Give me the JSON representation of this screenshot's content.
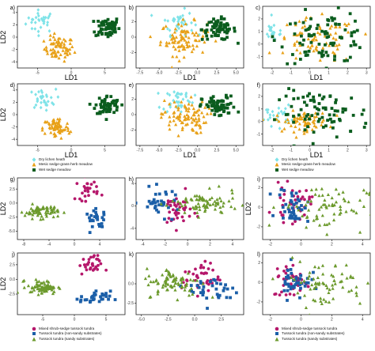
{
  "colors": {
    "dry_lichen_heath": "#7fe3e8",
    "mesic_sedge_grass_herb_meadow": "#e8a118",
    "wet_sedge_meadow": "#0b5d1e",
    "mixed_shrub_sedge_tussock_tundra": "#b5176b",
    "tussock_tundra_non_sandy": "#1b5fa8",
    "tussock_tundra_sandy": "#6c9a2d"
  },
  "legends": [
    {
      "items": [
        {
          "label": "Dry lichen heath",
          "marker": "diamond",
          "color_key": "dry_lichen_heath"
        },
        {
          "label": "Mesic sedge-grass-herb meadow",
          "marker": "triangle",
          "color_key": "mesic_sedge_grass_herb_meadow"
        },
        {
          "label": "Wet sedge meadow",
          "marker": "square",
          "color_key": "wet_sedge_meadow"
        }
      ]
    },
    {
      "items": [
        {
          "label": "Dry lichen heath",
          "marker": "diamond",
          "color_key": "dry_lichen_heath"
        },
        {
          "label": "Mesic sedge-grass-herb meadow",
          "marker": "triangle",
          "color_key": "mesic_sedge_grass_herb_meadow"
        },
        {
          "label": "Wet sedge meadow",
          "marker": "square",
          "color_key": "wet_sedge_meadow"
        }
      ]
    },
    {
      "items": [
        {
          "label": "Mixed shrub-sedge tussock tundra",
          "marker": "circle",
          "color_key": "mixed_shrub_sedge_tussock_tundra"
        },
        {
          "label": "Tussock tundra (non-sandy substrates)",
          "marker": "square",
          "color_key": "tussock_tundra_non_sandy"
        },
        {
          "label": "Tussock tundra (sandy substrates)",
          "marker": "triangle",
          "color_key": "tussock_tundra_sandy"
        }
      ]
    },
    {
      "items": [
        {
          "label": "Mixed shrub-sedge tussock tundra",
          "marker": "circle",
          "color_key": "mixed_shrub_sedge_tussock_tundra"
        },
        {
          "label": "Tussock tundra (non-sandy substrates)",
          "marker": "square",
          "color_key": "tussock_tundra_non_sandy"
        },
        {
          "label": "Tussock tundra (sandy substrates)",
          "marker": "triangle",
          "color_key": "tussock_tundra_sandy"
        }
      ]
    }
  ],
  "caption": "",
  "chart_data": [
    {
      "panel": "a)",
      "type": "scatter",
      "xlabel": "LD1",
      "ylabel": "LD2",
      "xlim": [
        -8,
        8
      ],
      "ylim": [
        -5,
        5
      ],
      "xticks": [
        "-5",
        "0",
        "5"
      ],
      "xtick_values": [
        -5,
        0,
        5
      ],
      "yticks": [
        "-4",
        "-2",
        "0",
        "2",
        "4"
      ],
      "ytick_values": [
        -4,
        -2,
        0,
        2,
        4
      ],
      "series": [
        {
          "color_key": "dry_lichen_heath",
          "marker": "diamond",
          "cx": -4.5,
          "cy": 2.6,
          "sx": 1.1,
          "sy": 0.9,
          "n": 30
        },
        {
          "color_key": "mesic_sedge_grass_herb_meadow",
          "marker": "triangle",
          "cx": -1.8,
          "cy": -1.9,
          "sx": 1.1,
          "sy": 1.0,
          "n": 70
        },
        {
          "color_key": "wet_sedge_meadow",
          "marker": "square",
          "cx": 5.4,
          "cy": 1.6,
          "sx": 0.9,
          "sy": 0.9,
          "n": 60
        }
      ]
    },
    {
      "panel": "b)",
      "type": "scatter",
      "xlabel": "LD1",
      "ylabel": "",
      "xlim": [
        -8,
        6
      ],
      "ylim": [
        -4,
        4
      ],
      "xticks": [
        "-7.5",
        "-5.0",
        "-2.5",
        "0.0",
        "2.5",
        "5.0"
      ],
      "xtick_values": [
        -7.5,
        -5,
        -2.5,
        0,
        2.5,
        5
      ],
      "yticks": [
        "-2",
        "0",
        "2"
      ],
      "ytick_values": [
        -2,
        0,
        2
      ],
      "series": [
        {
          "color_key": "dry_lichen_heath",
          "marker": "diamond",
          "cx": -2.5,
          "cy": 1.9,
          "sx": 1.0,
          "sy": 0.8,
          "n": 40
        },
        {
          "color_key": "mesic_sedge_grass_herb_meadow",
          "marker": "triangle",
          "cx": -1.8,
          "cy": -0.2,
          "sx": 1.5,
          "sy": 1.1,
          "n": 90
        },
        {
          "color_key": "wet_sedge_meadow",
          "marker": "square",
          "cx": 2.8,
          "cy": 1.0,
          "sx": 1.1,
          "sy": 0.7,
          "n": 70
        }
      ]
    },
    {
      "panel": "c)",
      "type": "scatter",
      "xlabel": "LD1",
      "ylabel": "",
      "xlim": [
        -2.5,
        3.2
      ],
      "ylim": [
        -1.9,
        3.0
      ],
      "xticks": [
        "-2",
        "-1",
        "0",
        "1",
        "2",
        "3"
      ],
      "xtick_values": [
        -2,
        -1,
        0,
        1,
        2,
        3
      ],
      "yticks": [
        "-1",
        "0",
        "1",
        "2"
      ],
      "ytick_values": [
        -1,
        0,
        1,
        2
      ],
      "series": [
        {
          "color_key": "dry_lichen_heath",
          "marker": "diamond",
          "cx": -1.9,
          "cy": 1.0,
          "sx": 0.3,
          "sy": 0.4,
          "n": 18
        },
        {
          "color_key": "mesic_sedge_grass_herb_meadow",
          "marker": "triangle",
          "cx": 0.3,
          "cy": 0.2,
          "sx": 1.1,
          "sy": 0.9,
          "n": 80
        },
        {
          "color_key": "wet_sedge_meadow",
          "marker": "square",
          "cx": 0.8,
          "cy": 0.5,
          "sx": 1.2,
          "sy": 1.0,
          "n": 90
        }
      ]
    },
    {
      "panel": "d)",
      "type": "scatter",
      "xlabel": "LD1",
      "ylabel": "LD2",
      "xlim": [
        -8,
        8
      ],
      "ylim": [
        -5,
        5
      ],
      "xticks": [
        "-5",
        "0",
        "5"
      ],
      "xtick_values": [
        -5,
        0,
        5
      ],
      "yticks": [
        "-4",
        "-2",
        "0",
        "2",
        "4"
      ],
      "ytick_values": [
        -4,
        -2,
        0,
        2,
        4
      ],
      "series": [
        {
          "color_key": "dry_lichen_heath",
          "marker": "diamond",
          "cx": -4.3,
          "cy": 2.5,
          "sx": 1.0,
          "sy": 0.8,
          "n": 30
        },
        {
          "color_key": "mesic_sedge_grass_herb_meadow",
          "marker": "triangle",
          "cx": -2.2,
          "cy": -2.2,
          "sx": 1.0,
          "sy": 0.9,
          "n": 70
        },
        {
          "color_key": "wet_sedge_meadow",
          "marker": "square",
          "cx": 5.4,
          "cy": 1.5,
          "sx": 0.9,
          "sy": 0.8,
          "n": 60
        }
      ]
    },
    {
      "panel": "e)",
      "type": "scatter",
      "xlabel": "LD1",
      "ylabel": "",
      "xlim": [
        -8,
        6
      ],
      "ylim": [
        -4,
        4
      ],
      "xticks": [
        "-7.5",
        "-5.0",
        "-2.5",
        "0.0",
        "2.5",
        "5.0"
      ],
      "xtick_values": [
        -7.5,
        -5,
        -2.5,
        0,
        2.5,
        5
      ],
      "yticks": [
        "-2",
        "0",
        "2"
      ],
      "ytick_values": [
        -2,
        0,
        2
      ],
      "series": [
        {
          "color_key": "dry_lichen_heath",
          "marker": "diamond",
          "cx": -2.5,
          "cy": 1.9,
          "sx": 1.0,
          "sy": 0.8,
          "n": 40
        },
        {
          "color_key": "mesic_sedge_grass_herb_meadow",
          "marker": "triangle",
          "cx": -1.8,
          "cy": -0.3,
          "sx": 1.5,
          "sy": 1.1,
          "n": 90
        },
        {
          "color_key": "wet_sedge_meadow",
          "marker": "square",
          "cx": 2.8,
          "cy": 1.0,
          "sx": 1.1,
          "sy": 0.7,
          "n": 70
        }
      ]
    },
    {
      "panel": "f)",
      "type": "scatter",
      "xlabel": "LD1",
      "ylabel": "",
      "xlim": [
        -2.5,
        3.2
      ],
      "ylim": [
        -1.9,
        3.0
      ],
      "xticks": [
        "-2",
        "-1",
        "0",
        "1",
        "2",
        "3"
      ],
      "xtick_values": [
        -2,
        -1,
        0,
        1,
        2,
        3
      ],
      "yticks": [
        "-1",
        "0",
        "1",
        "2"
      ],
      "ytick_values": [
        -1,
        0,
        1,
        2
      ],
      "series": [
        {
          "color_key": "dry_lichen_heath",
          "marker": "diamond",
          "cx": -1.8,
          "cy": 0.5,
          "sx": 0.4,
          "sy": 0.4,
          "n": 25
        },
        {
          "color_key": "mesic_sedge_grass_herb_meadow",
          "marker": "triangle",
          "cx": -0.4,
          "cy": 0.0,
          "sx": 0.7,
          "sy": 0.4,
          "n": 70
        },
        {
          "color_key": "wet_sedge_meadow",
          "marker": "square",
          "cx": 0.8,
          "cy": 0.6,
          "sx": 1.2,
          "sy": 0.9,
          "n": 80
        }
      ]
    },
    {
      "panel": "g)",
      "type": "scatter",
      "xlabel": "",
      "ylabel": "LD2",
      "xlim": [
        -9,
        8
      ],
      "ylim": [
        -6.5,
        4.5
      ],
      "xticks": [
        "-8",
        "-4",
        "0",
        "4"
      ],
      "xtick_values": [
        -8,
        -4,
        0,
        4
      ],
      "yticks": [
        "-5.0",
        "-2.5",
        "0.0",
        "2.5"
      ],
      "ytick_values": [
        -5,
        -2.5,
        0,
        2.5
      ],
      "series": [
        {
          "color_key": "mixed_shrub_sedge_tussock_tundra",
          "marker": "circle",
          "cx": 2.0,
          "cy": 2.5,
          "sx": 0.9,
          "sy": 1.0,
          "n": 25
        },
        {
          "color_key": "tussock_tundra_non_sandy",
          "marker": "square",
          "cx": 3.6,
          "cy": -2.9,
          "sx": 0.9,
          "sy": 0.8,
          "n": 25
        },
        {
          "color_key": "tussock_tundra_sandy",
          "marker": "triangle",
          "cx": -5.2,
          "cy": -1.5,
          "sx": 1.3,
          "sy": 0.6,
          "n": 70
        }
      ]
    },
    {
      "panel": "h)",
      "type": "scatter",
      "xlabel": "",
      "ylabel": "",
      "xlim": [
        -4.6,
        5.0
      ],
      "ylim": [
        -6.0,
        5.0
      ],
      "xticks": [
        "-4",
        "-2",
        "0",
        "2",
        "4"
      ],
      "xtick_values": [
        -4,
        -2,
        0,
        2,
        4
      ],
      "yticks": [
        "-4",
        "0",
        "4"
      ],
      "ytick_values": [
        -4,
        0,
        4
      ],
      "series": [
        {
          "color_key": "mixed_shrub_sedge_tussock_tundra",
          "marker": "circle",
          "cx": -1.0,
          "cy": -0.8,
          "sx": 0.7,
          "sy": 1.5,
          "n": 40
        },
        {
          "color_key": "tussock_tundra_non_sandy",
          "marker": "square",
          "cx": -2.4,
          "cy": 0.6,
          "sx": 0.9,
          "sy": 1.2,
          "n": 35
        },
        {
          "color_key": "tussock_tundra_sandy",
          "marker": "triangle",
          "cx": 1.5,
          "cy": 0.3,
          "sx": 1.5,
          "sy": 1.1,
          "n": 80
        }
      ]
    },
    {
      "panel": "i)",
      "type": "scatter",
      "xlabel": "",
      "ylabel": "LD2",
      "xlim": [
        -2.5,
        4.5
      ],
      "ylim": [
        -3.3,
        3.0
      ],
      "xticks": [
        "-2",
        "0",
        "2",
        "4"
      ],
      "xtick_values": [
        -2,
        0,
        2,
        4
      ],
      "yticks": [
        "-2",
        "0",
        "2"
      ],
      "ytick_values": [
        -2,
        0,
        2
      ],
      "series": [
        {
          "color_key": "mixed_shrub_sedge_tussock_tundra",
          "marker": "circle",
          "cx": -0.6,
          "cy": 0.3,
          "sx": 0.6,
          "sy": 0.9,
          "n": 40
        },
        {
          "color_key": "tussock_tundra_non_sandy",
          "marker": "square",
          "cx": -0.5,
          "cy": 0.2,
          "sx": 0.5,
          "sy": 0.9,
          "n": 40
        },
        {
          "color_key": "tussock_tundra_sandy",
          "marker": "triangle",
          "cx": 1.5,
          "cy": 0.0,
          "sx": 1.4,
          "sy": 1.2,
          "n": 70
        }
      ]
    },
    {
      "panel": "j)",
      "type": "scatter",
      "xlabel": "",
      "ylabel": "LD2",
      "xlim": [
        -9,
        8
      ],
      "ylim": [
        -6.0,
        4.5
      ],
      "xticks": [
        "-5",
        "0",
        "5"
      ],
      "xtick_values": [
        -5,
        0,
        5
      ],
      "yticks": [
        "-2.5",
        "0.0",
        "2.5"
      ],
      "ytick_values": [
        -2.5,
        0,
        2.5
      ],
      "series": [
        {
          "color_key": "mixed_shrub_sedge_tussock_tundra",
          "marker": "circle",
          "cx": 2.5,
          "cy": 2.4,
          "sx": 0.9,
          "sy": 0.8,
          "n": 30
        },
        {
          "color_key": "tussock_tundra_non_sandy",
          "marker": "square",
          "cx": 3.3,
          "cy": -3.2,
          "sx": 1.2,
          "sy": 0.6,
          "n": 30
        },
        {
          "color_key": "tussock_tundra_sandy",
          "marker": "triangle",
          "cx": -5.0,
          "cy": -1.3,
          "sx": 1.2,
          "sy": 0.6,
          "n": 70
        }
      ]
    },
    {
      "panel": "k)",
      "type": "scatter",
      "xlabel": "",
      "ylabel": "",
      "xlim": [
        -5.5,
        4.6
      ],
      "ylim": [
        -4.0,
        4.0
      ],
      "xticks": [
        "-5.0",
        "-2.5",
        "0.0",
        "2.5"
      ],
      "xtick_values": [
        -5,
        -2.5,
        0,
        2.5
      ],
      "yticks": [
        "-2.5",
        "0.0"
      ],
      "ytick_values": [
        -2.5,
        0
      ],
      "series": [
        {
          "color_key": "mixed_shrub_sedge_tussock_tundra",
          "marker": "circle",
          "cx": 0.6,
          "cy": 0.8,
          "sx": 0.9,
          "sy": 1.0,
          "n": 40
        },
        {
          "color_key": "tussock_tundra_non_sandy",
          "marker": "square",
          "cx": 1.8,
          "cy": -0.8,
          "sx": 1.2,
          "sy": 1.0,
          "n": 35
        },
        {
          "color_key": "tussock_tundra_sandy",
          "marker": "triangle",
          "cx": -2.0,
          "cy": 0.2,
          "sx": 1.3,
          "sy": 0.9,
          "n": 80
        }
      ]
    },
    {
      "panel": "l)",
      "type": "scatter",
      "xlabel": "",
      "ylabel": "",
      "xlim": [
        -2.5,
        4.5
      ],
      "ylim": [
        -3.3,
        3.0
      ],
      "xticks": [
        "-2",
        "0",
        "2",
        "4"
      ],
      "xtick_values": [
        -2,
        0,
        2,
        4
      ],
      "yticks": [
        "-2",
        "0",
        "2"
      ],
      "ytick_values": [
        -2,
        0,
        2
      ],
      "series": [
        {
          "color_key": "mixed_shrub_sedge_tussock_tundra",
          "marker": "circle",
          "cx": -0.6,
          "cy": 0.2,
          "sx": 0.6,
          "sy": 0.9,
          "n": 40
        },
        {
          "color_key": "tussock_tundra_non_sandy",
          "marker": "square",
          "cx": -0.4,
          "cy": 0.1,
          "sx": 0.5,
          "sy": 0.9,
          "n": 40
        },
        {
          "color_key": "tussock_tundra_sandy",
          "marker": "triangle",
          "cx": 1.4,
          "cy": -0.1,
          "sx": 1.4,
          "sy": 1.2,
          "n": 70
        }
      ]
    }
  ]
}
